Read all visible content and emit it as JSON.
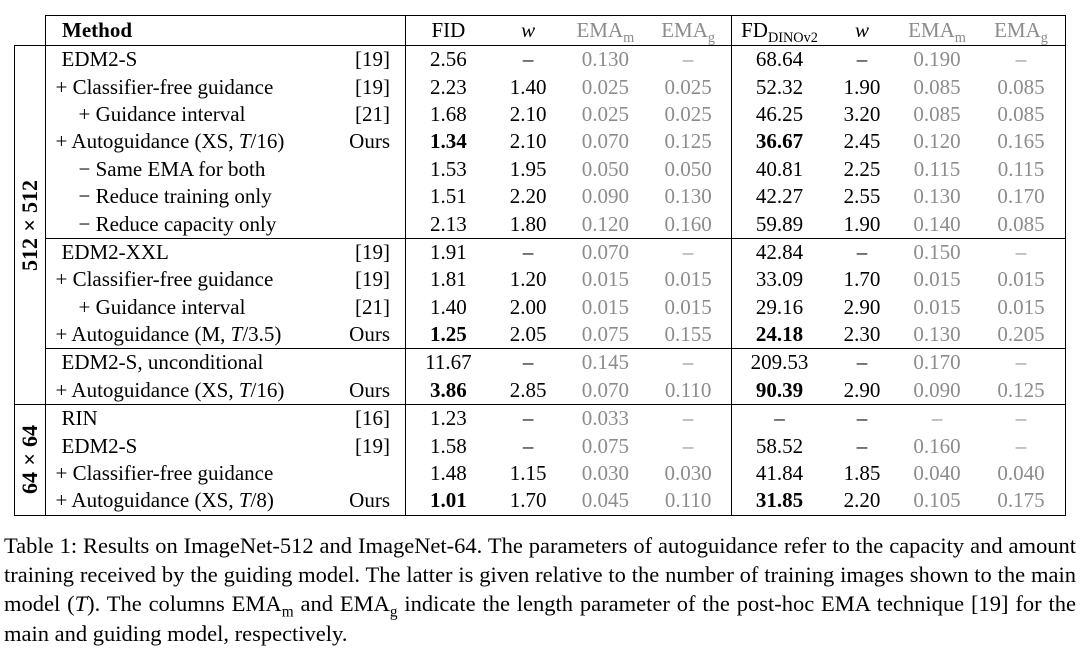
{
  "colors": {
    "muted": "#8c8c8c",
    "line": "#000000",
    "background": "#ffffff"
  },
  "table": {
    "header": {
      "method": "Method",
      "g1": {
        "fid": "FID",
        "w": "w",
        "ema_base": "EMA",
        "ema_m_sub": "m",
        "ema_g_sub": "g"
      },
      "g2": {
        "fd_base": "FD",
        "fd_sub": "DINOv2",
        "w": "w",
        "ema_base": "EMA",
        "ema_m_sub": "m",
        "ema_g_sub": "g"
      }
    },
    "sections": [
      {
        "side_label": "512×512",
        "blocks": [
          {
            "rows": [
              {
                "method": "EDM2-S",
                "ref": "[19]",
                "indent": 0,
                "cells": [
                  "2.56",
                  "–",
                  "0.130",
                  "–",
                  "68.64",
                  "–",
                  "0.190",
                  "–"
                ],
                "bold": []
              },
              {
                "method": "+ Classifier-free guidance",
                "ref": "[19]",
                "indent": 0,
                "cells": [
                  "2.23",
                  "1.40",
                  "0.025",
                  "0.025",
                  "52.32",
                  "1.90",
                  "0.085",
                  "0.085"
                ],
                "bold": []
              },
              {
                "method": "+ Guidance interval",
                "ref": "[21]",
                "indent": 1,
                "cells": [
                  "1.68",
                  "2.10",
                  "0.025",
                  "0.025",
                  "46.25",
                  "3.20",
                  "0.085",
                  "0.085"
                ],
                "bold": []
              },
              {
                "method": "+ Autoguidance (XS, T/16)",
                "ref": "Ours",
                "indent": 0,
                "cells": [
                  "1.34",
                  "2.10",
                  "0.070",
                  "0.125",
                  "36.67",
                  "2.45",
                  "0.120",
                  "0.165"
                ],
                "bold": [
                  0,
                  4
                ]
              },
              {
                "method": "− Same EMA for both",
                "ref": "",
                "indent": 1,
                "cells": [
                  "1.53",
                  "1.95",
                  "0.050",
                  "0.050",
                  "40.81",
                  "2.25",
                  "0.115",
                  "0.115"
                ],
                "bold": []
              },
              {
                "method": "− Reduce training only",
                "ref": "",
                "indent": 1,
                "cells": [
                  "1.51",
                  "2.20",
                  "0.090",
                  "0.130",
                  "42.27",
                  "2.55",
                  "0.130",
                  "0.170"
                ],
                "bold": []
              },
              {
                "method": "− Reduce capacity only",
                "ref": "",
                "indent": 1,
                "cells": [
                  "2.13",
                  "1.80",
                  "0.120",
                  "0.160",
                  "59.89",
                  "1.90",
                  "0.140",
                  "0.085"
                ],
                "bold": []
              }
            ]
          },
          {
            "rows": [
              {
                "method": "EDM2-XXL",
                "ref": "[19]",
                "indent": 0,
                "cells": [
                  "1.91",
                  "–",
                  "0.070",
                  "–",
                  "42.84",
                  "–",
                  "0.150",
                  "–"
                ],
                "bold": []
              },
              {
                "method": "+ Classifier-free guidance",
                "ref": "[19]",
                "indent": 0,
                "cells": [
                  "1.81",
                  "1.20",
                  "0.015",
                  "0.015",
                  "33.09",
                  "1.70",
                  "0.015",
                  "0.015"
                ],
                "bold": []
              },
              {
                "method": "+ Guidance interval",
                "ref": "[21]",
                "indent": 1,
                "cells": [
                  "1.40",
                  "2.00",
                  "0.015",
                  "0.015",
                  "29.16",
                  "2.90",
                  "0.015",
                  "0.015"
                ],
                "bold": []
              },
              {
                "method": "+ Autoguidance (M, T/3.5)",
                "ref": "Ours",
                "indent": 0,
                "cells": [
                  "1.25",
                  "2.05",
                  "0.075",
                  "0.155",
                  "24.18",
                  "2.30",
                  "0.130",
                  "0.205"
                ],
                "bold": [
                  0,
                  4
                ]
              }
            ]
          },
          {
            "rows": [
              {
                "method": "EDM2-S, unconditional",
                "ref": "",
                "indent": 0,
                "cells": [
                  "11.67",
                  "–",
                  "0.145",
                  "–",
                  "209.53",
                  "–",
                  "0.170",
                  "–"
                ],
                "bold": []
              },
              {
                "method": "+ Autoguidance (XS, T/16)",
                "ref": "Ours",
                "indent": 0,
                "cells": [
                  "3.86",
                  "2.85",
                  "0.070",
                  "0.110",
                  "90.39",
                  "2.90",
                  "0.090",
                  "0.125"
                ],
                "bold": [
                  0,
                  4
                ]
              }
            ]
          }
        ]
      },
      {
        "side_label": "64×64",
        "blocks": [
          {
            "rows": [
              {
                "method": "RIN",
                "ref": "[16]",
                "indent": 0,
                "cells": [
                  "1.23",
                  "–",
                  "0.033",
                  "–",
                  "–",
                  "–",
                  "–",
                  "–"
                ],
                "bold": []
              },
              {
                "method": "EDM2-S",
                "ref": "[19]",
                "indent": 0,
                "cells": [
                  "1.58",
                  "–",
                  "0.075",
                  "–",
                  "58.52",
                  "–",
                  "0.160",
                  "–"
                ],
                "bold": []
              },
              {
                "method": "+ Classifier-free guidance",
                "ref": "",
                "indent": 0,
                "cells": [
                  "1.48",
                  "1.15",
                  "0.030",
                  "0.030",
                  "41.84",
                  "1.85",
                  "0.040",
                  "0.040"
                ],
                "bold": []
              },
              {
                "method": "+ Autoguidance (XS, T/8)",
                "ref": "Ours",
                "indent": 0,
                "cells": [
                  "1.01",
                  "1.70",
                  "0.045",
                  "0.110",
                  "31.85",
                  "2.20",
                  "0.105",
                  "0.175"
                ],
                "bold": [
                  0,
                  4
                ]
              }
            ]
          }
        ]
      }
    ]
  },
  "caption": {
    "p1": "Table 1: Results on ImageNet-512 and ImageNet-64. The parameters of autoguidance refer to the capacity and amount training received by the guiding model. The latter is given relative to the number of training images shown to the main model (",
    "t": "T",
    "p2": "). The columns EMA",
    "m": "m",
    "p3": " and EMA",
    "g": "g",
    "p4": " indicate the length parameter of the post-hoc EMA technique [19] for the main and guiding model, respectively."
  }
}
